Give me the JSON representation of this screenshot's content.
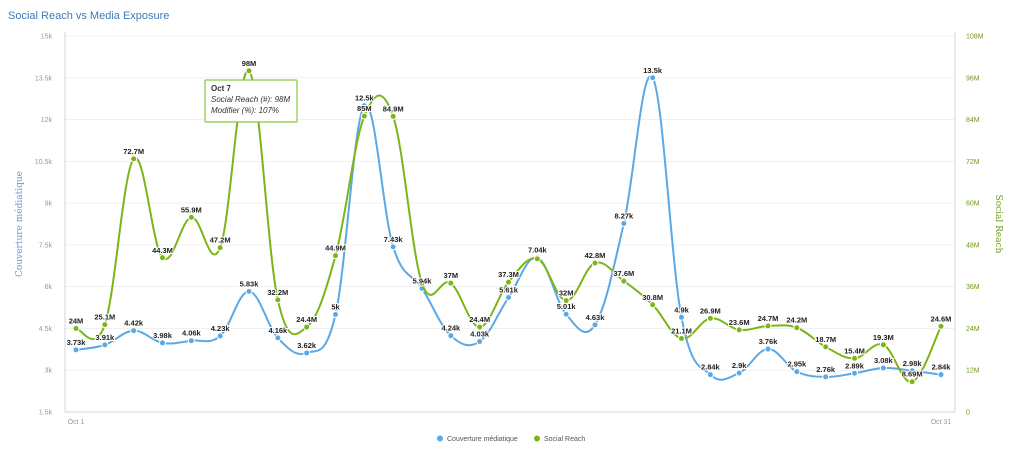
{
  "chart_data": {
    "type": "line",
    "title": "Social Reach vs Media Exposure",
    "x_tick_labels": [
      "Oct 1",
      "Oct 31"
    ],
    "days": [
      1,
      2,
      3,
      4,
      5,
      6,
      7,
      8,
      9,
      10,
      11,
      12,
      13,
      14,
      15,
      16,
      17,
      18,
      19,
      20,
      21,
      22,
      23,
      24,
      25,
      26,
      27,
      28,
      29,
      30,
      31
    ],
    "left_axis": {
      "label": "Couverture médiatique",
      "min": 1500,
      "max": 15000,
      "ticks": [
        "1.5k",
        "3k",
        "4.5k",
        "6k",
        "7.5k",
        "9k",
        "10.5k",
        "12k",
        "13.5k",
        "15k"
      ]
    },
    "right_axis": {
      "label": "Social Reach",
      "min": 0,
      "max": 108,
      "ticks": [
        "0",
        "12M",
        "24M",
        "36M",
        "48M",
        "60M",
        "72M",
        "84M",
        "96M",
        "108M"
      ]
    },
    "series": [
      {
        "name": "Couverture médiatique",
        "color": "#5aa9e6",
        "axis": "left",
        "values": [
          3730,
          3910,
          4420,
          3980,
          4060,
          4230,
          5830,
          4160,
          3620,
          5000,
          12500,
          7430,
          5940,
          4240,
          4030,
          5610,
          7040,
          5010,
          4630,
          8270,
          13500,
          4900,
          2840,
          2900,
          3760,
          2950,
          2760,
          2890,
          3080,
          2980,
          2840
        ],
        "labels": [
          "3.73k",
          "3.91k",
          "4.42k",
          "3.98k",
          "4.06k",
          "4.23k",
          "5.83k",
          "4.16k",
          "3.62k",
          "5k",
          "12.5k",
          "7.43k",
          "5.94k",
          "4.24k",
          "4.03k",
          "5.61k",
          "7.04k",
          "5.01k",
          "4.63k",
          "8.27k",
          "13.5k",
          "4.9k",
          "2.84k",
          "2.9k",
          "3.76k",
          "2.95k",
          "2.76k",
          "2.89k",
          "3.08k",
          "2.98k",
          "2.84k"
        ]
      },
      {
        "name": "Social Reach",
        "color": "#7cb518",
        "axis": "right",
        "values": [
          24,
          25.1,
          72.7,
          44.3,
          55.9,
          47.2,
          98,
          32.2,
          24.4,
          44.9,
          85,
          84.9,
          37,
          37,
          24.4,
          37.3,
          44,
          32,
          42.8,
          37.6,
          30.8,
          21.1,
          26.9,
          23.6,
          24.7,
          24.2,
          18.7,
          15.4,
          19.3,
          8.69,
          24.6
        ],
        "labels": [
          "24M",
          "25.1M",
          "72.7M",
          "44.3M",
          "55.9M",
          "47.2M",
          "98M",
          "32.2M",
          "24.4M",
          "44.9M",
          "85M",
          "84.9M",
          "",
          "37M",
          "24.4M",
          "37.3M",
          "",
          "32M",
          "42.8M",
          "37.6M",
          "30.8M",
          "21.1M",
          "26.9M",
          "23.6M",
          "24.7M",
          "24.2M",
          "18.7M",
          "15.4M",
          "19.3M",
          "8.69M",
          "24.6M"
        ]
      }
    ],
    "legend": {
      "position": "bottom-center"
    },
    "tooltip": {
      "title": "Oct 7",
      "line1": "Social Reach (#): 98M",
      "line2": "Modifier (%): 107%"
    }
  }
}
